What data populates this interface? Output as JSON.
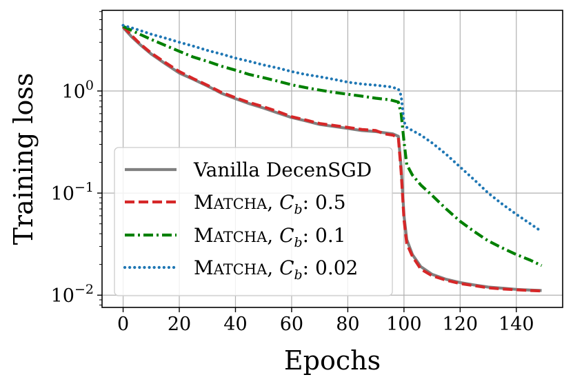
{
  "chart_data": {
    "type": "line",
    "xlabel": "Epochs",
    "ylabel": "Training loss",
    "xlim": [
      -7.5,
      156.5
    ],
    "ylim_log10": [
      -2.12,
      0.79
    ],
    "yscale": "log",
    "x_ticks": [
      0,
      20,
      40,
      60,
      80,
      100,
      120,
      140
    ],
    "x_tick_labels": [
      "0",
      "20",
      "40",
      "60",
      "80",
      "100",
      "120",
      "140"
    ],
    "y_ticks": [
      0.01,
      0.1,
      1
    ],
    "y_tick_labels": [
      {
        "base": "10",
        "exp": "−2"
      },
      {
        "base": "10",
        "exp": "−1"
      },
      {
        "base": "10",
        "exp": "0"
      }
    ],
    "grid": true,
    "legend_position": "lower-left",
    "series": [
      {
        "name": "Vanilla DecenSGD",
        "name_prefix": "",
        "name_smallcaps": "",
        "name_rest": "Vanilla DecenSGD",
        "color": "#808080",
        "style": "solid",
        "x": [
          0,
          3,
          6,
          10,
          15,
          20,
          25,
          30,
          35,
          40,
          45,
          50,
          55,
          60,
          65,
          70,
          75,
          80,
          85,
          90,
          93,
          96,
          98,
          99,
          100,
          101,
          103,
          106,
          110,
          115,
          120,
          125,
          130,
          135,
          140,
          145,
          149
        ],
        "y": [
          4.2,
          3.4,
          2.85,
          2.3,
          1.85,
          1.5,
          1.3,
          1.12,
          0.95,
          0.84,
          0.75,
          0.68,
          0.61,
          0.55,
          0.51,
          0.47,
          0.45,
          0.43,
          0.41,
          0.4,
          0.39,
          0.38,
          0.36,
          0.18,
          0.06,
          0.035,
          0.025,
          0.019,
          0.016,
          0.0143,
          0.0133,
          0.0126,
          0.012,
          0.0117,
          0.0114,
          0.0112,
          0.0111
        ]
      },
      {
        "name": "MATCHA, Cb: 0.5",
        "name_prefix": "M",
        "name_smallcaps": "ATCHA",
        "name_rest": ", C_b: 0.5",
        "color": "#d62728",
        "style": "dashed",
        "x": [
          0,
          3,
          6,
          10,
          15,
          20,
          25,
          30,
          35,
          40,
          45,
          50,
          55,
          60,
          65,
          70,
          75,
          80,
          85,
          90,
          93,
          96,
          98,
          99,
          100,
          101,
          103,
          106,
          110,
          115,
          120,
          125,
          130,
          135,
          140,
          145,
          149
        ],
        "y": [
          4.3,
          3.5,
          2.9,
          2.35,
          1.9,
          1.55,
          1.32,
          1.14,
          0.97,
          0.86,
          0.77,
          0.7,
          0.63,
          0.56,
          0.52,
          0.48,
          0.46,
          0.44,
          0.42,
          0.41,
          0.38,
          0.37,
          0.35,
          0.16,
          0.055,
          0.032,
          0.024,
          0.018,
          0.0155,
          0.014,
          0.013,
          0.0124,
          0.0118,
          0.0115,
          0.0113,
          0.0111,
          0.011
        ]
      },
      {
        "name": "MATCHA, Cb: 0.1",
        "name_prefix": "M",
        "name_smallcaps": "ATCHA",
        "name_rest": ", C_b: 0.1",
        "color": "#008000",
        "style": "dashdot",
        "x": [
          0,
          5,
          10,
          15,
          20,
          25,
          30,
          35,
          40,
          45,
          50,
          55,
          60,
          65,
          70,
          75,
          80,
          85,
          90,
          95,
          98,
          99,
          100,
          101,
          103,
          106,
          110,
          115,
          120,
          125,
          130,
          135,
          140,
          145,
          149
        ],
        "y": [
          4.3,
          3.7,
          3.2,
          2.8,
          2.45,
          2.15,
          1.95,
          1.75,
          1.6,
          1.45,
          1.35,
          1.25,
          1.15,
          1.08,
          1.02,
          0.97,
          0.93,
          0.89,
          0.85,
          0.82,
          0.78,
          0.6,
          0.32,
          0.19,
          0.15,
          0.12,
          0.095,
          0.07,
          0.053,
          0.042,
          0.034,
          0.029,
          0.025,
          0.022,
          0.0195
        ]
      },
      {
        "name": "MATCHA, Cb: 0.02",
        "name_prefix": "M",
        "name_smallcaps": "ATCHA",
        "name_rest": ", C_b: 0.02",
        "color": "#1f77b4",
        "style": "dotted",
        "x": [
          0,
          5,
          10,
          15,
          20,
          25,
          30,
          35,
          40,
          45,
          50,
          55,
          60,
          65,
          70,
          75,
          80,
          85,
          90,
          95,
          98,
          99,
          100,
          101,
          103,
          106,
          110,
          115,
          120,
          125,
          130,
          135,
          140,
          145,
          149
        ],
        "y": [
          4.4,
          4.0,
          3.6,
          3.3,
          3.0,
          2.75,
          2.5,
          2.3,
          2.1,
          1.95,
          1.8,
          1.68,
          1.55,
          1.45,
          1.38,
          1.3,
          1.22,
          1.17,
          1.14,
          1.1,
          1.05,
          0.9,
          0.5,
          0.44,
          0.41,
          0.37,
          0.31,
          0.24,
          0.18,
          0.135,
          0.1,
          0.078,
          0.062,
          0.05,
          0.042
        ]
      }
    ]
  }
}
